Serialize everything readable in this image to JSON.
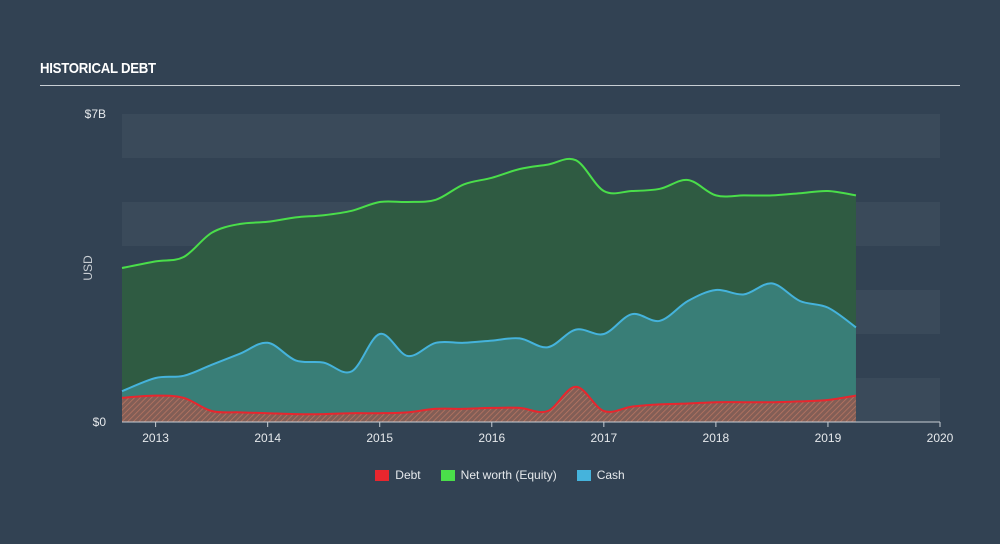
{
  "title": "HISTORICAL DEBT",
  "chart_data": {
    "type": "area",
    "title": "HISTORICAL DEBT",
    "ylabel": "USD",
    "xlabel": "",
    "ylim": [
      0,
      7
    ],
    "xlim": [
      2012.7,
      2020
    ],
    "y_ticks": [
      {
        "value": 0,
        "label": "$0"
      },
      {
        "value": 7,
        "label": "$7B"
      }
    ],
    "x_ticks": [
      {
        "value": 2013,
        "label": "2013"
      },
      {
        "value": 2014,
        "label": "2014"
      },
      {
        "value": 2015,
        "label": "2015"
      },
      {
        "value": 2016,
        "label": "2016"
      },
      {
        "value": 2017,
        "label": "2017"
      },
      {
        "value": 2018,
        "label": "2018"
      },
      {
        "value": 2019,
        "label": "2019"
      },
      {
        "value": 2020,
        "label": "2020"
      }
    ],
    "series": [
      {
        "name": "Net worth (Equity)",
        "color": "#4ade4a",
        "x": [
          2012.7,
          2013.0,
          2013.25,
          2013.5,
          2013.75,
          2014.0,
          2014.25,
          2014.5,
          2014.75,
          2015.0,
          2015.25,
          2015.5,
          2015.75,
          2016.0,
          2016.25,
          2016.5,
          2016.75,
          2017.0,
          2017.25,
          2017.5,
          2017.75,
          2018.0,
          2018.25,
          2018.5,
          2018.75,
          2019.0,
          2019.25
        ],
        "values": [
          3.5,
          3.65,
          3.75,
          4.3,
          4.5,
          4.55,
          4.65,
          4.7,
          4.8,
          5.0,
          5.0,
          5.05,
          5.4,
          5.55,
          5.75,
          5.85,
          5.95,
          5.25,
          5.25,
          5.3,
          5.5,
          5.15,
          5.15,
          5.15,
          5.2,
          5.25,
          5.15
        ]
      },
      {
        "name": "Cash",
        "color": "#45b3dc",
        "x": [
          2012.7,
          2013.0,
          2013.25,
          2013.5,
          2013.75,
          2014.0,
          2014.25,
          2014.5,
          2014.75,
          2015.0,
          2015.25,
          2015.5,
          2015.75,
          2016.0,
          2016.25,
          2016.5,
          2016.75,
          2017.0,
          2017.25,
          2017.5,
          2017.75,
          2018.0,
          2018.25,
          2018.5,
          2018.75,
          2019.0,
          2019.25
        ],
        "values": [
          0.7,
          1.0,
          1.05,
          1.3,
          1.55,
          1.8,
          1.4,
          1.35,
          1.15,
          2.0,
          1.5,
          1.8,
          1.8,
          1.85,
          1.9,
          1.7,
          2.1,
          2.0,
          2.45,
          2.3,
          2.75,
          3.0,
          2.9,
          3.15,
          2.75,
          2.6,
          2.15
        ]
      },
      {
        "name": "Debt",
        "color": "#e8262e",
        "x": [
          2012.7,
          2013.0,
          2013.25,
          2013.5,
          2013.75,
          2014.0,
          2014.25,
          2014.5,
          2014.75,
          2015.0,
          2015.25,
          2015.5,
          2015.75,
          2016.0,
          2016.25,
          2016.5,
          2016.75,
          2017.0,
          2017.25,
          2017.5,
          2017.75,
          2018.0,
          2018.25,
          2018.5,
          2018.75,
          2019.0,
          2019.25
        ],
        "values": [
          0.55,
          0.6,
          0.55,
          0.25,
          0.22,
          0.2,
          0.18,
          0.18,
          0.2,
          0.2,
          0.22,
          0.3,
          0.3,
          0.32,
          0.32,
          0.25,
          0.8,
          0.25,
          0.35,
          0.4,
          0.42,
          0.45,
          0.45,
          0.45,
          0.47,
          0.5,
          0.6
        ]
      }
    ]
  }
}
